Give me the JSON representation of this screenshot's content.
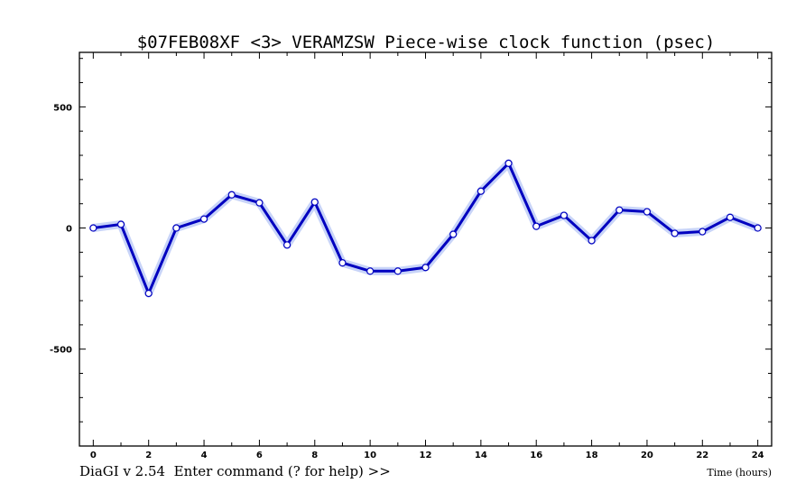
{
  "chart_data": {
    "type": "line",
    "title": "$07FEB08XF <3>  VERAMZSW  Piece-wise clock function (psec)",
    "xlabel": "Time (hours)",
    "ylabel": "",
    "xlim": [
      -0.5,
      24.5
    ],
    "ylim": [
      -900,
      725
    ],
    "x_ticks": [
      0,
      2,
      4,
      6,
      8,
      10,
      12,
      14,
      16,
      18,
      20,
      22,
      24
    ],
    "y_ticks": [
      500,
      0,
      -500
    ],
    "grid": false,
    "series": [
      {
        "name": "clock function",
        "color": "#0000c0",
        "band_color": "#c8d4f8",
        "x": [
          0,
          1,
          2,
          3,
          4,
          5,
          6,
          7,
          8,
          9,
          10,
          11,
          12,
          13,
          14,
          15,
          16,
          17,
          18,
          19,
          20,
          21,
          22,
          23,
          24
        ],
        "y": [
          0,
          15,
          -270,
          0,
          37,
          137,
          104,
          -70,
          107,
          -144,
          -178,
          -178,
          -163,
          -26,
          152,
          267,
          7,
          52,
          -52,
          74,
          67,
          -22,
          -15,
          44,
          0
        ]
      }
    ]
  },
  "prompt": "DiaGI v 2.54  Enter command (? for help) >>"
}
